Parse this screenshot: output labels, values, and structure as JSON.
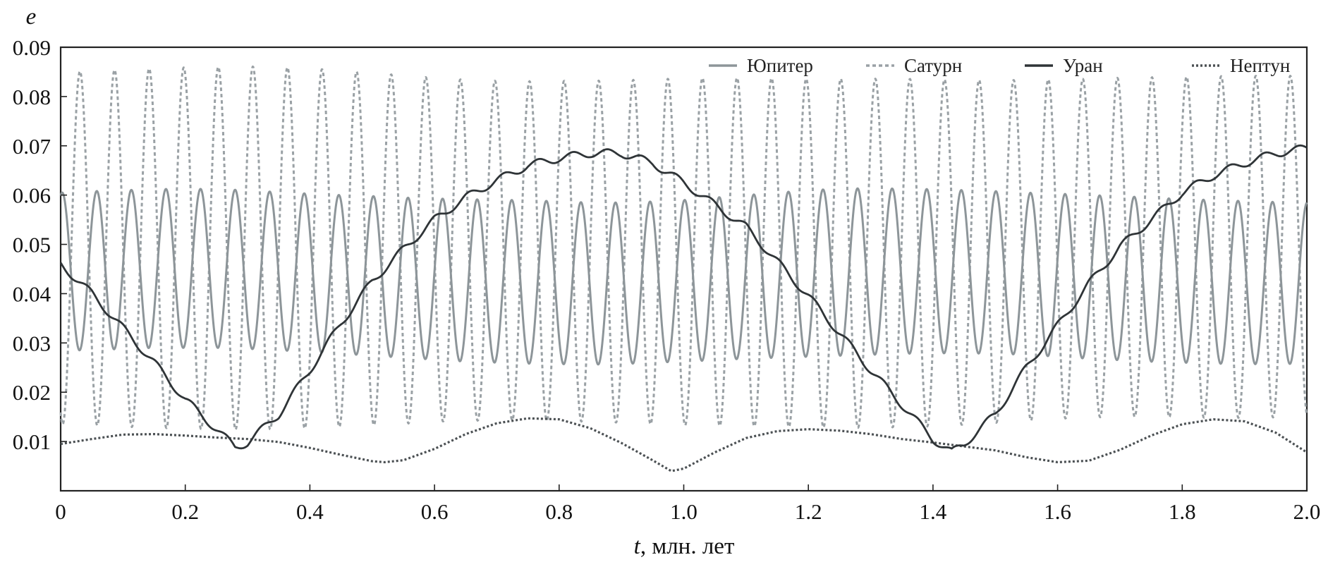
{
  "chart_data": {
    "type": "line",
    "title": "",
    "xlabel_italic": "t",
    "xlabel_rest": ", млн. лет",
    "ylabel": "e",
    "xlim": [
      0,
      2.0
    ],
    "ylim": [
      0,
      0.09
    ],
    "xticks": [
      0,
      0.2,
      0.4,
      0.6,
      0.8,
      1.0,
      1.2,
      1.4,
      1.6,
      1.8,
      2.0
    ],
    "xtick_labels": [
      "0",
      "0.2",
      "0.4",
      "0.6",
      "0.8",
      "1.0",
      "1.2",
      "1.4",
      "1.6",
      "1.8",
      "2.0"
    ],
    "yticks": [
      0.01,
      0.02,
      0.03,
      0.04,
      0.05,
      0.06,
      0.07,
      0.08,
      0.09
    ],
    "ytick_labels": [
      "0.01",
      "0.02",
      "0.03",
      "0.04",
      "0.05",
      "0.06",
      "0.07",
      "0.08",
      "0.09"
    ],
    "grid": false,
    "legend_position": "top",
    "series": [
      {
        "name": "Юпитер",
        "color": "#8d9599",
        "style": "solid",
        "x": [
          0,
          0.05,
          0.1,
          0.15,
          0.2,
          0.25,
          0.3,
          0.35,
          0.4,
          0.45,
          0.5,
          0.55,
          0.6,
          0.65,
          0.7,
          0.75,
          0.8,
          0.85,
          0.9,
          0.95,
          1.0,
          1.05,
          1.1,
          1.15,
          1.2,
          1.25,
          1.3,
          1.35,
          1.4,
          1.45,
          1.5,
          1.55,
          1.6,
          1.65,
          1.7,
          1.75,
          1.8,
          1.85,
          1.9,
          1.95,
          2.0
        ],
        "upper": [
          0.0605,
          0.0608,
          0.061,
          0.0612,
          0.0613,
          0.0612,
          0.061,
          0.0606,
          0.0603,
          0.06,
          0.0598,
          0.0595,
          0.0593,
          0.0592,
          0.059,
          0.059,
          0.0587,
          0.0585,
          0.0585,
          0.0587,
          0.059,
          0.0595,
          0.06,
          0.0605,
          0.061,
          0.0613,
          0.0614,
          0.0613,
          0.0612,
          0.061,
          0.0608,
          0.0605,
          0.0603,
          0.06,
          0.0598,
          0.0595,
          0.0592,
          0.059,
          0.0588,
          0.0586,
          0.0585
        ],
        "lower": [
          0.0285,
          0.0285,
          0.0288,
          0.029,
          0.029,
          0.029,
          0.0288,
          0.0285,
          0.0282,
          0.0278,
          0.0274,
          0.027,
          0.0266,
          0.0262,
          0.026,
          0.0258,
          0.0257,
          0.0256,
          0.0257,
          0.026,
          0.0262,
          0.0265,
          0.0268,
          0.027,
          0.0272,
          0.0274,
          0.0276,
          0.0278,
          0.0279,
          0.0279,
          0.0278,
          0.0276,
          0.0272,
          0.0268,
          0.0265,
          0.0262,
          0.026,
          0.0258,
          0.0257,
          0.0257,
          0.0258
        ],
        "period": 0.0555,
        "phase0": 0.058
      },
      {
        "name": "Сатурн",
        "color": "#9aa1a5",
        "style": "dashed",
        "x": [
          0,
          0.05,
          0.1,
          0.15,
          0.2,
          0.25,
          0.3,
          0.35,
          0.4,
          0.45,
          0.5,
          0.55,
          0.6,
          0.65,
          0.7,
          0.75,
          0.8,
          0.85,
          0.9,
          0.95,
          1.0,
          1.05,
          1.1,
          1.15,
          1.2,
          1.25,
          1.3,
          1.35,
          1.4,
          1.45,
          1.5,
          1.55,
          1.6,
          1.65,
          1.7,
          1.75,
          1.8,
          1.85,
          1.9,
          1.95,
          2.0
        ],
        "upper": [
          0.085,
          0.0852,
          0.0855,
          0.0857,
          0.0859,
          0.086,
          0.0861,
          0.086,
          0.0857,
          0.0853,
          0.0848,
          0.0843,
          0.0838,
          0.0834,
          0.0832,
          0.0831,
          0.0832,
          0.0832,
          0.0833,
          0.0835,
          0.0837,
          0.0838,
          0.0838,
          0.0837,
          0.0836,
          0.0836,
          0.0836,
          0.0836,
          0.0835,
          0.0834,
          0.0833,
          0.0834,
          0.0835,
          0.0836,
          0.0838,
          0.0839,
          0.084,
          0.0841,
          0.0842,
          0.0842,
          0.0842
        ],
        "lower": [
          0.0135,
          0.0133,
          0.013,
          0.0128,
          0.0126,
          0.0125,
          0.0124,
          0.0125,
          0.0127,
          0.013,
          0.0133,
          0.0136,
          0.014,
          0.0142,
          0.0143,
          0.0143,
          0.0142,
          0.014,
          0.0138,
          0.0135,
          0.0133,
          0.0132,
          0.0131,
          0.013,
          0.0129,
          0.0128,
          0.0128,
          0.0129,
          0.0131,
          0.0134,
          0.0138,
          0.0142,
          0.0146,
          0.0149,
          0.015,
          0.015,
          0.0149,
          0.0148,
          0.0148,
          0.0149,
          0.015
        ],
        "period": 0.0555,
        "phase0": 0.031
      },
      {
        "name": "Уран",
        "color": "#2f3437",
        "style": "solid",
        "x": [
          0,
          0.05,
          0.1,
          0.15,
          0.2,
          0.25,
          0.28,
          0.3,
          0.35,
          0.4,
          0.45,
          0.5,
          0.55,
          0.6,
          0.65,
          0.7,
          0.75,
          0.8,
          0.85,
          0.9,
          0.95,
          1.0,
          1.05,
          1.1,
          1.15,
          1.2,
          1.25,
          1.3,
          1.35,
          1.4,
          1.43,
          1.45,
          1.5,
          1.55,
          1.6,
          1.65,
          1.7,
          1.75,
          1.8,
          1.85,
          1.9,
          1.95,
          2.0
        ],
        "values": [
          0.046,
          0.04,
          0.033,
          0.026,
          0.0185,
          0.0125,
          0.0088,
          0.0098,
          0.0155,
          0.0245,
          0.034,
          0.0425,
          0.049,
          0.055,
          0.0595,
          0.063,
          0.066,
          0.0675,
          0.0685,
          0.0685,
          0.0665,
          0.0625,
          0.058,
          0.0535,
          0.0465,
          0.0395,
          0.032,
          0.0245,
          0.0175,
          0.0105,
          0.0078,
          0.0095,
          0.0155,
          0.025,
          0.0335,
          0.042,
          0.0495,
          0.055,
          0.0605,
          0.064,
          0.0665,
          0.0685,
          0.0695
        ],
        "wiggle_amplitude": 0.0008,
        "period": 0.0555,
        "phase0": 0.045
      },
      {
        "name": "Нептун",
        "color": "#4c5154",
        "style": "dotted",
        "x": [
          0,
          0.05,
          0.1,
          0.15,
          0.2,
          0.25,
          0.3,
          0.35,
          0.4,
          0.45,
          0.5,
          0.52,
          0.55,
          0.6,
          0.65,
          0.7,
          0.75,
          0.8,
          0.85,
          0.9,
          0.95,
          0.98,
          1.0,
          1.05,
          1.1,
          1.15,
          1.2,
          1.25,
          1.3,
          1.35,
          1.4,
          1.45,
          1.5,
          1.55,
          1.6,
          1.65,
          1.7,
          1.75,
          1.8,
          1.85,
          1.9,
          1.95,
          2.0
        ],
        "values": [
          0.0095,
          0.0105,
          0.0114,
          0.0115,
          0.0112,
          0.0108,
          0.0105,
          0.0099,
          0.0087,
          0.0073,
          0.006,
          0.0058,
          0.0062,
          0.0085,
          0.0115,
          0.0137,
          0.0147,
          0.0145,
          0.0127,
          0.0097,
          0.0062,
          0.004,
          0.0045,
          0.0078,
          0.0107,
          0.0121,
          0.0125,
          0.0122,
          0.0115,
          0.0105,
          0.0098,
          0.009,
          0.0082,
          0.0068,
          0.0058,
          0.0061,
          0.0083,
          0.0112,
          0.0135,
          0.0145,
          0.0141,
          0.0118,
          0.0078
        ]
      }
    ]
  }
}
